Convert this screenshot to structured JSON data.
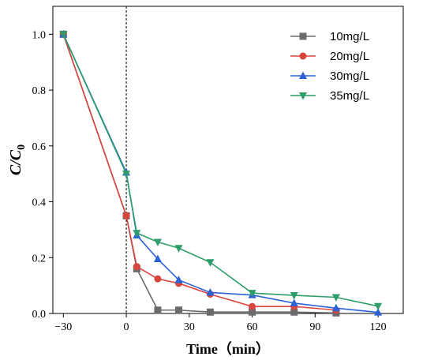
{
  "chart_data": {
    "type": "line",
    "xlabel": "Time（min）",
    "ylabel": {
      "main": "C/C",
      "sub": "0"
    },
    "xlim": [
      -35,
      132
    ],
    "ylim": [
      0.0,
      1.1
    ],
    "xticks": [
      -30,
      0,
      30,
      60,
      90,
      120
    ],
    "yticks": [
      0.0,
      0.2,
      0.4,
      0.6,
      0.8,
      1.0
    ],
    "xtick_labels": [
      "−30",
      "0",
      "30",
      "60",
      "90",
      "120"
    ],
    "ytick_labels": [
      "0.0",
      "0.2",
      "0.4",
      "0.6",
      "0.8",
      "1.0"
    ],
    "vline_x": 0,
    "legend_position": "top-right",
    "series": [
      {
        "name": "10mg/L",
        "color": "#6b6b6b",
        "marker": "square",
        "x": [
          -30,
          0,
          5,
          15,
          25,
          40,
          60,
          80,
          100
        ],
        "y": [
          1.0,
          0.35,
          0.16,
          0.012,
          0.012,
          0.005,
          0.005,
          0.005,
          0.002
        ]
      },
      {
        "name": "20mg/L",
        "color": "#d9453d",
        "marker": "circle",
        "x": [
          -30,
          0,
          5,
          15,
          25,
          40,
          60,
          80,
          100
        ],
        "y": [
          1.0,
          0.35,
          0.168,
          0.124,
          0.108,
          0.069,
          0.025,
          0.025,
          0.012
        ]
      },
      {
        "name": "30mg/L",
        "color": "#2c62d4",
        "marker": "triangle-up",
        "x": [
          -30,
          0,
          5,
          15,
          25,
          40,
          60,
          80,
          100,
          120
        ],
        "y": [
          1.0,
          0.505,
          0.28,
          0.195,
          0.12,
          0.075,
          0.066,
          0.037,
          0.019,
          0.004
        ]
      },
      {
        "name": "35mg/L",
        "color": "#2e9d6a",
        "marker": "triangle-down",
        "x": [
          -30,
          0,
          5,
          15,
          25,
          40,
          60,
          80,
          100,
          120
        ],
        "y": [
          1.0,
          0.5,
          0.288,
          0.256,
          0.234,
          0.183,
          0.073,
          0.065,
          0.058,
          0.026
        ]
      }
    ]
  }
}
